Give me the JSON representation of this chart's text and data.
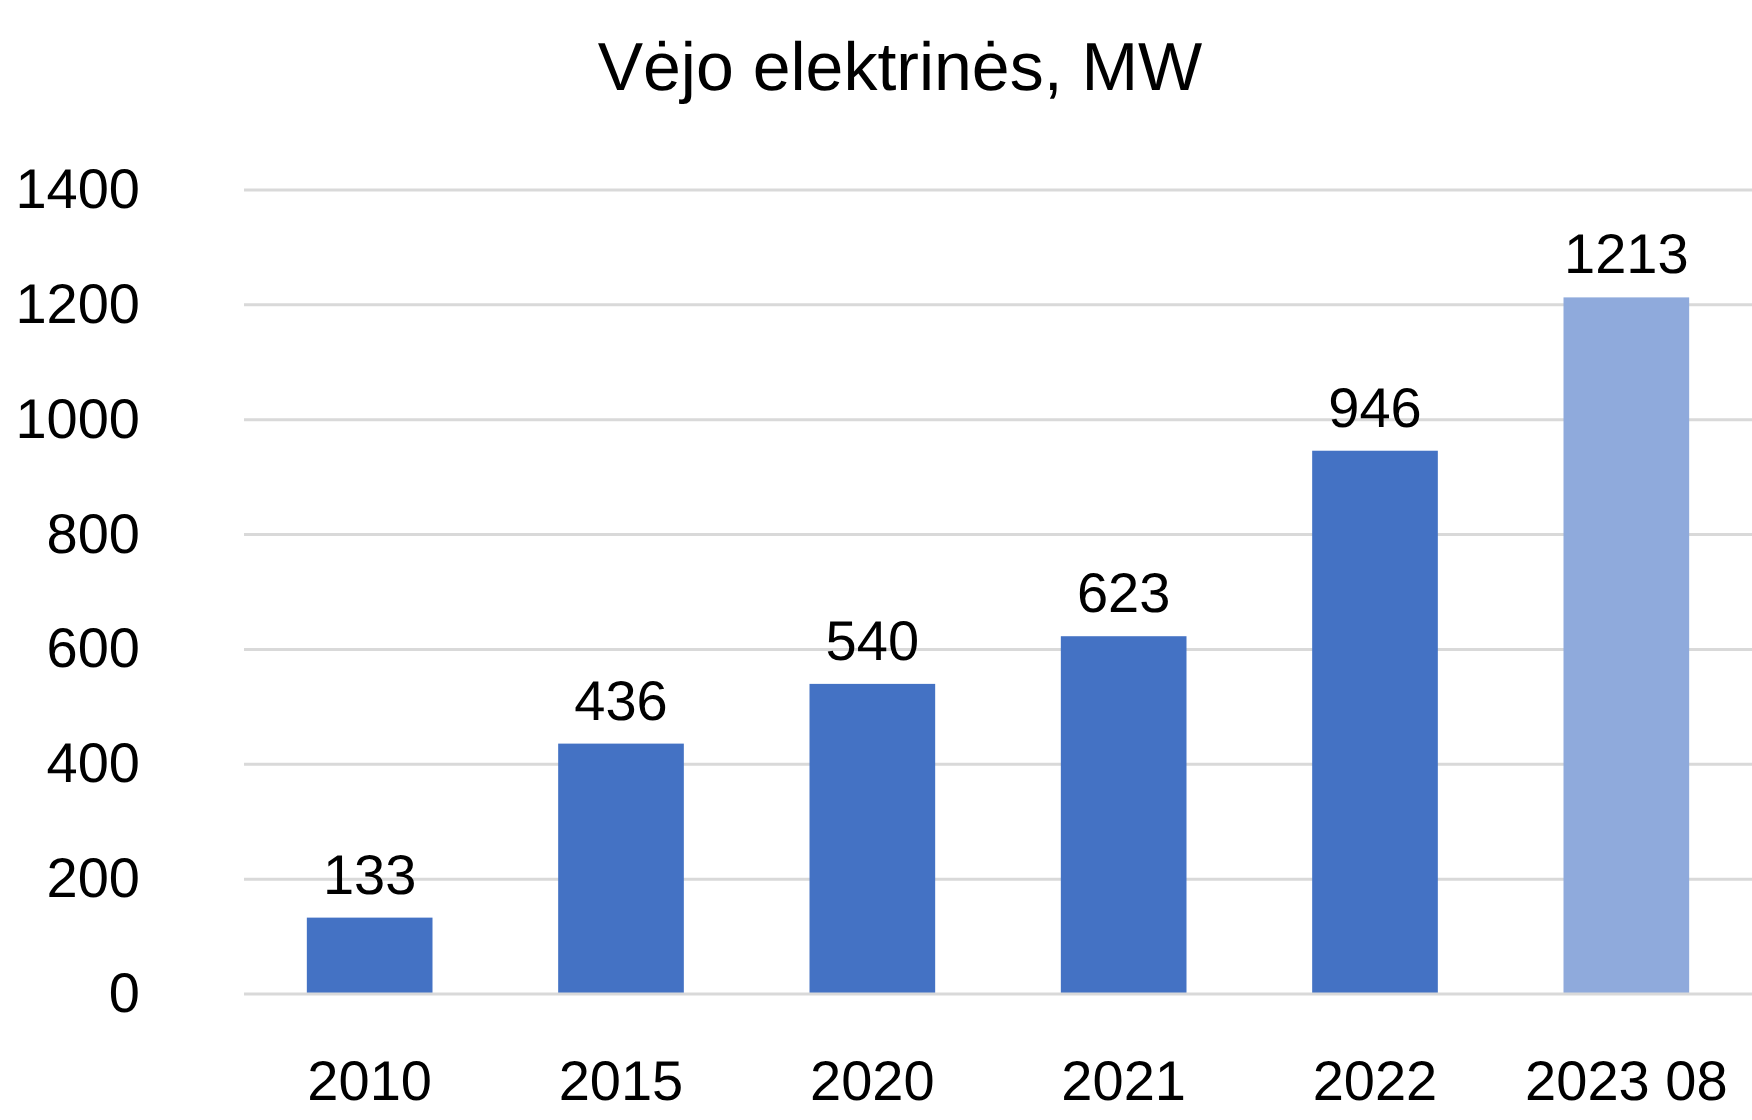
{
  "chart_data": {
    "type": "bar",
    "title": "Vėjo elektrinės, MW",
    "categories": [
      "2010",
      "2015",
      "2020",
      "2021",
      "2022",
      "2023 08"
    ],
    "values": [
      133,
      436,
      540,
      623,
      946,
      1213
    ],
    "colors": [
      "#4472c4",
      "#4472c4",
      "#4472c4",
      "#4472c4",
      "#4472c4",
      "#8faadc"
    ],
    "ylim": [
      0,
      1400
    ],
    "yticks": [
      0,
      200,
      400,
      600,
      800,
      1000,
      1200,
      1400
    ],
    "grid": "y",
    "data_labels": true
  }
}
